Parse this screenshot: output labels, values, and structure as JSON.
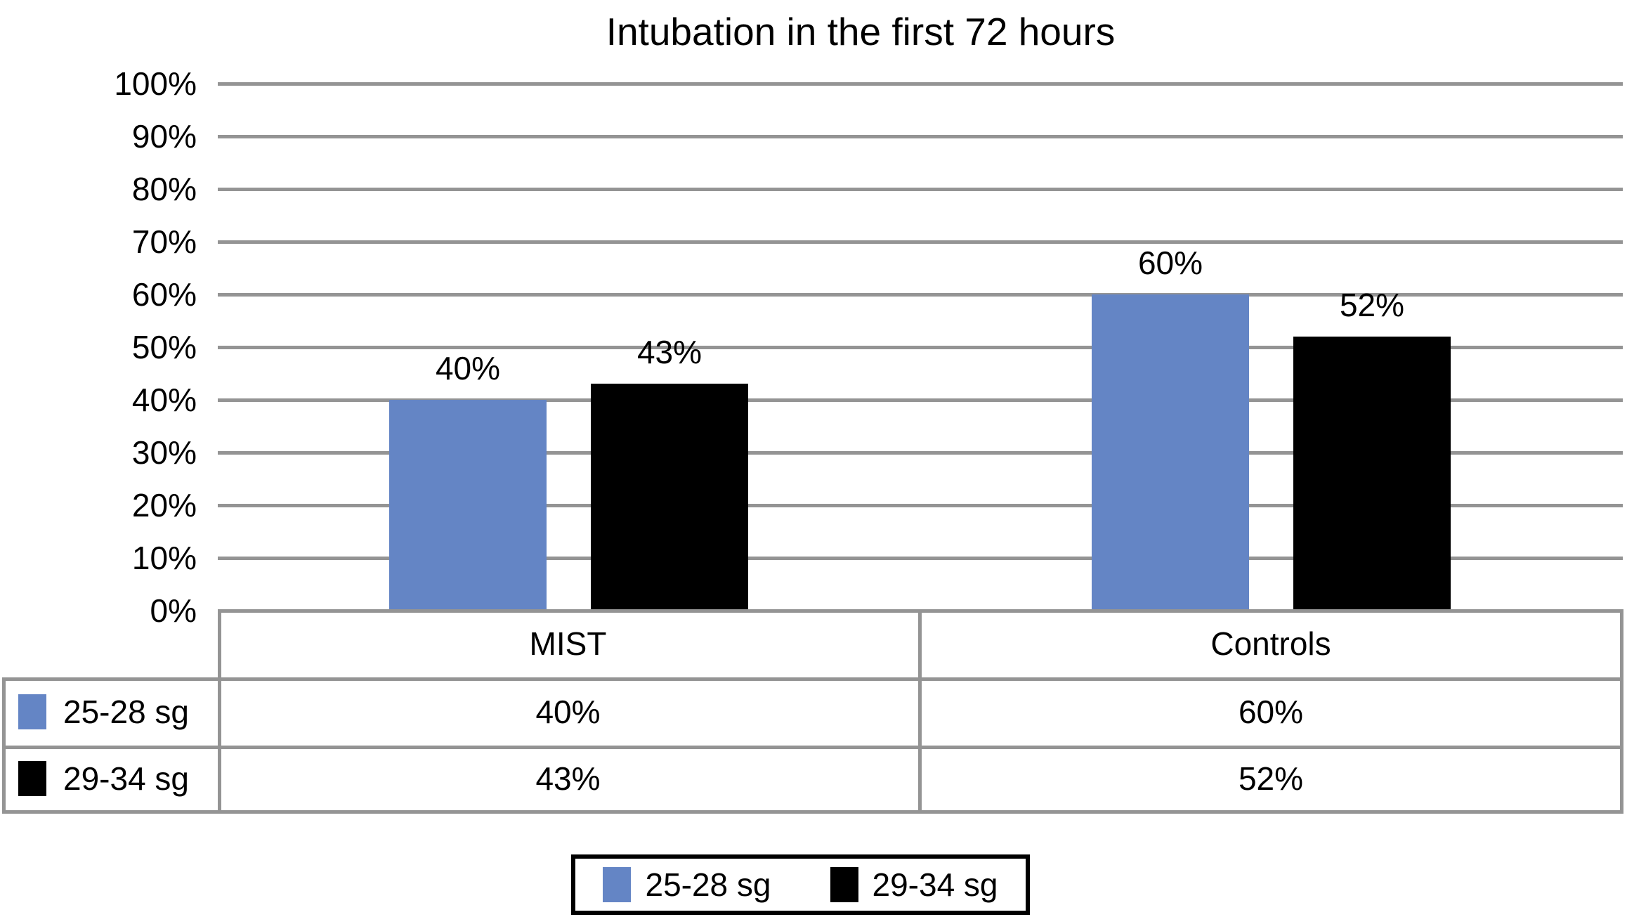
{
  "chart_data": {
    "type": "bar",
    "title": "Intubation in the first 72 hours",
    "categories": [
      "MIST",
      "Controls"
    ],
    "series": [
      {
        "name": "25-28 sg",
        "color": "#6485C5",
        "values": [
          40,
          60
        ],
        "labels": [
          "40%",
          "60%"
        ]
      },
      {
        "name": "29-34 sg",
        "color": "#000000",
        "values": [
          43,
          52
        ],
        "labels": [
          "43%",
          "52%"
        ]
      }
    ],
    "xlabel": "",
    "ylabel": "",
    "ylim": [
      0,
      100
    ],
    "y_ticks": [
      "100%",
      "90%",
      "80%",
      "70%",
      "60%",
      "50%",
      "40%",
      "30%",
      "20%",
      "10%",
      "0%"
    ],
    "grid": true,
    "legend_position": "bottom",
    "data_table_shown": true
  },
  "table": {
    "col_headers": [
      "MIST",
      "Controls"
    ],
    "row_headers": [
      "25-28 sg",
      "29-34 sg"
    ],
    "values": [
      [
        "40%",
        "60%"
      ],
      [
        "43%",
        "52%"
      ]
    ]
  },
  "legend": {
    "items": [
      {
        "label": "25-28 sg",
        "color": "#6485C5"
      },
      {
        "label": "29-34 sg",
        "color": "#000000"
      }
    ]
  },
  "colors": {
    "series_blue": "#6485C5",
    "series_black": "#000000",
    "gridline": "#949494",
    "table_border": "#949494",
    "legend_border": "#000000",
    "background": "#FFFFFF",
    "text": "#000000"
  }
}
